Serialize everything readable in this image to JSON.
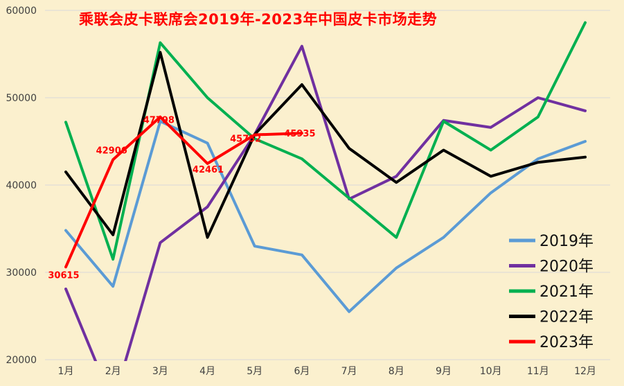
{
  "chart_data": {
    "type": "line",
    "title": "乘联会皮卡联席会2019年-2023年中国皮卡市场走势",
    "categories": [
      "1月",
      "2月",
      "3月",
      "4月",
      "5月",
      "6月",
      "7月",
      "8月",
      "9月",
      "10月",
      "11月",
      "12月"
    ],
    "series": [
      {
        "name": "2019年",
        "color": "#5B9BD5",
        "values": [
          34800,
          28400,
          47300,
          44800,
          33000,
          32000,
          25500,
          30500,
          34000,
          39100,
          43000,
          45000
        ]
      },
      {
        "name": "2020年",
        "color": "#7030A0",
        "values": [
          28100,
          15000,
          33400,
          37500,
          45800,
          55900,
          38400,
          41000,
          47400,
          46600,
          50000,
          48500
        ]
      },
      {
        "name": "2021年",
        "color": "#00B050",
        "values": [
          47200,
          31500,
          56300,
          50000,
          45300,
          43000,
          38500,
          34000,
          47300,
          44000,
          47800,
          58600
        ]
      },
      {
        "name": "2022年",
        "color": "#000000",
        "values": [
          41500,
          34300,
          55200,
          34000,
          45800,
          51500,
          44200,
          40300,
          44000,
          41000,
          42600,
          43200
        ]
      },
      {
        "name": "2023年",
        "color": "#FF0000",
        "values": [
          30615,
          42906,
          47798,
          42461,
          45752,
          45935
        ],
        "point_labels": [
          "30615",
          "42906",
          "47798",
          "42461",
          "45752",
          "45935"
        ],
        "label_offsets": [
          [
            -3,
            12
          ],
          [
            -2,
            -13
          ],
          [
            -2,
            5
          ],
          [
            1,
            9
          ],
          [
            -13,
            6
          ],
          [
            -3,
            1
          ]
        ]
      }
    ],
    "ylim": [
      20000,
      60000
    ],
    "yticks": [
      20000,
      30000,
      40000,
      50000,
      60000
    ],
    "grid": true,
    "legend_position": "right-inside"
  },
  "style": {
    "background": "#FBF0CE",
    "grid_color": "#D9D9D9",
    "title_color": "#FF0000",
    "tick_color": "#404040",
    "legend_text_color": "#111111",
    "data_label_color": "#FF0000"
  }
}
